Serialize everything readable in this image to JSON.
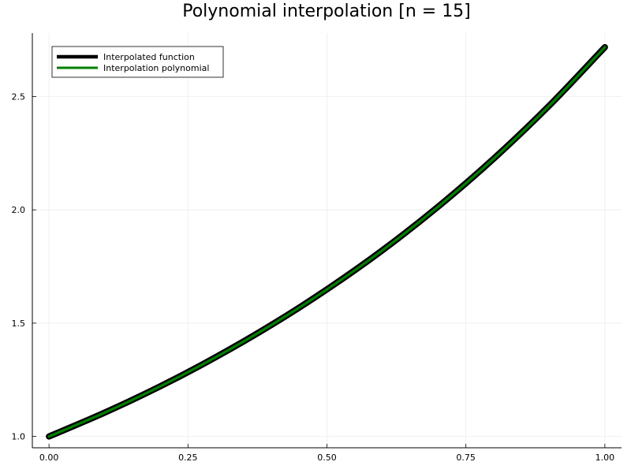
{
  "chart_data": {
    "type": "line",
    "title": "Polynomial interpolation [n = 15]",
    "xlabel": "",
    "ylabel": "",
    "xlim": [
      -0.03,
      1.03
    ],
    "ylim": [
      0.95,
      2.78
    ],
    "x_ticks": [
      0.0,
      0.25,
      0.5,
      0.75,
      1.0
    ],
    "x_tick_labels": [
      "0.00",
      "0.25",
      "0.50",
      "0.75",
      "1.00"
    ],
    "y_ticks": [
      1.0,
      1.5,
      2.0,
      2.5
    ],
    "y_tick_labels": [
      "1.0",
      "1.5",
      "2.0",
      "2.5"
    ],
    "grid": true,
    "legend_position": "top-left",
    "series": [
      {
        "name": "Interpolated function",
        "color": "#000000",
        "x": [
          0.0,
          0.1,
          0.2,
          0.3,
          0.4,
          0.5,
          0.6,
          0.7,
          0.8,
          0.9,
          1.0
        ],
        "y": [
          1.0,
          1.105,
          1.221,
          1.35,
          1.492,
          1.649,
          1.822,
          2.014,
          2.226,
          2.46,
          2.718
        ]
      },
      {
        "name": "Interpolation polynomial",
        "color": "#008000",
        "x": [
          0.0,
          0.1,
          0.2,
          0.3,
          0.4,
          0.5,
          0.6,
          0.7,
          0.8,
          0.9,
          1.0
        ],
        "y": [
          1.0,
          1.105,
          1.221,
          1.35,
          1.492,
          1.649,
          1.822,
          2.014,
          2.226,
          2.46,
          2.718
        ]
      }
    ]
  }
}
